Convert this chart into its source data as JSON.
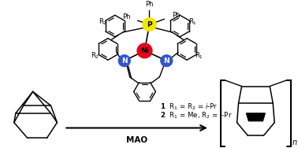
{
  "background_color": "#ffffff",
  "ni_color": "#e8001c",
  "p_color": "#f0e800",
  "n_color": "#3355cc",
  "ni_label": "Ni",
  "p_label": "P",
  "n_label": "N",
  "line1": "1  R₁ = R₂ = i-Pr",
  "line2": "2  R₁ = Me, R₂ = i-Pr",
  "mao_label": "MAO"
}
